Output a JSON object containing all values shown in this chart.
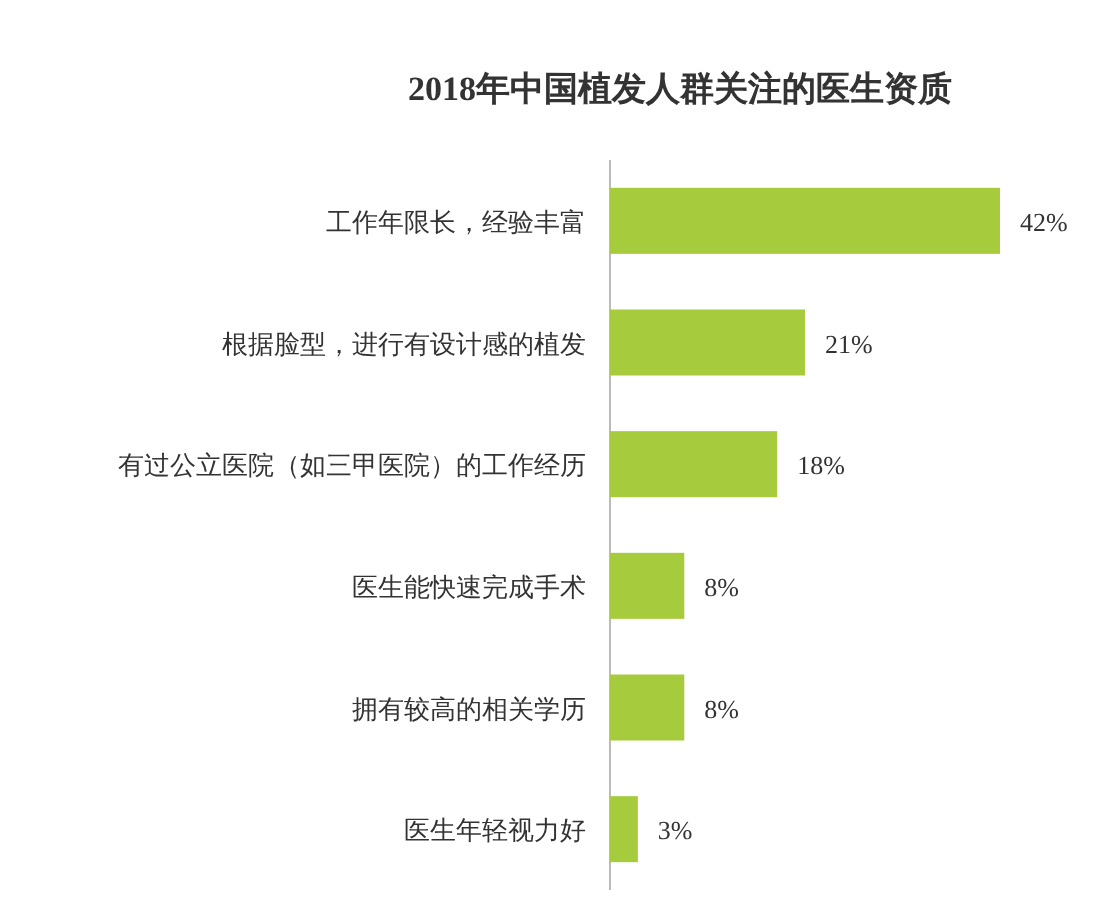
{
  "chart_data": {
    "type": "bar",
    "orientation": "horizontal",
    "title": "2018年中国植发人群关注的医生资质",
    "categories": [
      "工作年限长，经验丰富",
      "根据脸型，进行有设计感的植发",
      "有过公立医院（如三甲医院）的工作经历",
      "医生能快速完成手术",
      "拥有较高的相关学历",
      "医生年轻视力好"
    ],
    "values": [
      42,
      21,
      18,
      8,
      8,
      3
    ],
    "value_labels": [
      "42%",
      "21%",
      "18%",
      "8%",
      "8%",
      "3%"
    ],
    "color": "#a6cb3c"
  }
}
